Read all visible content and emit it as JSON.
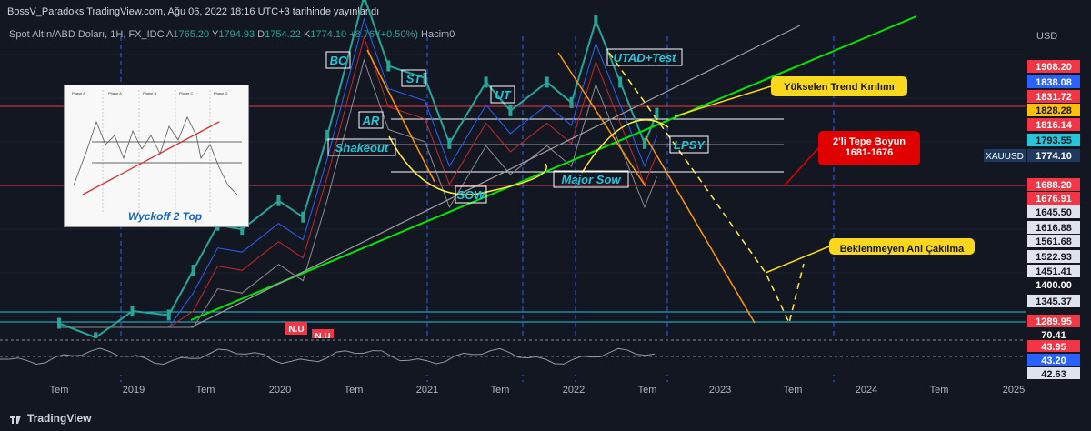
{
  "header": {
    "title": "BossV_Paradoks TradingView.com, Ağu 06, 2022 18:16 UTC+3 tarihinde yayınlandı"
  },
  "symbol_bar": {
    "name": "Spot Altın/ABD Doları, 1H, FX_IDC",
    "o_label": "A",
    "o": "1765.20",
    "h_label": "Y",
    "h": "1794.93",
    "l_label": "D",
    "l": "1754.22",
    "c_label": "K",
    "c": "1774.10",
    "change": "+8.76 (+0.50%)",
    "volume_label": "Hacim0"
  },
  "currency": "USD",
  "footer": {
    "brand": "TradingView"
  },
  "chart_data": {
    "type": "line",
    "title": "Spot Altın/ABD Doları, 1H, FX_IDC",
    "xlabel": "",
    "ylabel": "",
    "x_ticks": [
      "Tem",
      "2019",
      "Tem",
      "2020",
      "Tem",
      "2021",
      "Tem",
      "2022",
      "Tem",
      "2023",
      "Tem",
      "2024",
      "Tem",
      "2025"
    ],
    "ylim": [
      1250,
      1940
    ],
    "price_levels": [
      {
        "label": "1908.20",
        "color": "#f23645"
      },
      {
        "label": "1838.08",
        "color": "#2962ff"
      },
      {
        "label": "1831.72",
        "color": "#f23645"
      },
      {
        "label": "1828.28",
        "color": "#ffc107"
      },
      {
        "label": "1816.14",
        "color": "#f23645"
      },
      {
        "label": "1793.55",
        "color": "#26c6da"
      },
      {
        "label": "1774.10",
        "color": "#1e3a5f"
      },
      {
        "label": "1688.20",
        "color": "#f23645"
      },
      {
        "label": "1676.91",
        "color": "#f23645"
      },
      {
        "label": "1645.50",
        "color": "#e0e3eb"
      },
      {
        "label": "1616.88",
        "color": "#e0e3eb"
      },
      {
        "label": "1561.68",
        "color": "#e0e3eb"
      },
      {
        "label": "1522.93",
        "color": "#e0e3eb"
      },
      {
        "label": "1451.41",
        "color": "#e0e3eb"
      },
      {
        "label": "1400.00",
        "color": "#131722"
      },
      {
        "label": "1345.37",
        "color": "#e0e3eb"
      },
      {
        "label": "1289.95",
        "color": "#f23645"
      }
    ],
    "xauusd_tag": "XAUUSD",
    "series": [
      {
        "name": "XAUUSD",
        "color": "#26a69a",
        "x": [
          "2018-07",
          "2018-10",
          "2019-01",
          "2019-04",
          "2019-06",
          "2019-08",
          "2019-10",
          "2020-01",
          "2020-03",
          "2020-05",
          "2020-08",
          "2020-10",
          "2021-01",
          "2021-03",
          "2021-06",
          "2021-08",
          "2021-11",
          "2022-01",
          "2022-03",
          "2022-05",
          "2022-07",
          "2022-08"
        ],
        "values": [
          1260,
          1225,
          1290,
          1280,
          1390,
          1500,
          1490,
          1560,
          1520,
          1720,
          2060,
          1890,
          1860,
          1700,
          1850,
          1780,
          1850,
          1800,
          2000,
          1850,
          1700,
          1774
        ]
      }
    ],
    "indicator_levels": [
      "70.41",
      "43.95",
      "43.20",
      "42.63"
    ],
    "annotations": [
      "BC",
      "ST",
      "UT",
      "UTAD+Test",
      "AR",
      "Shakeout",
      "SOW",
      "Major Sow",
      "LPSY",
      "N.U",
      "N.U"
    ],
    "callouts": [
      "Yükselen Trend Kırılımı",
      "2'li Tepe Boyun\n1681-1676",
      "Beklenmeyen Ani Çakılma"
    ],
    "inset": {
      "title": "Wyckoff 2 Top"
    }
  }
}
